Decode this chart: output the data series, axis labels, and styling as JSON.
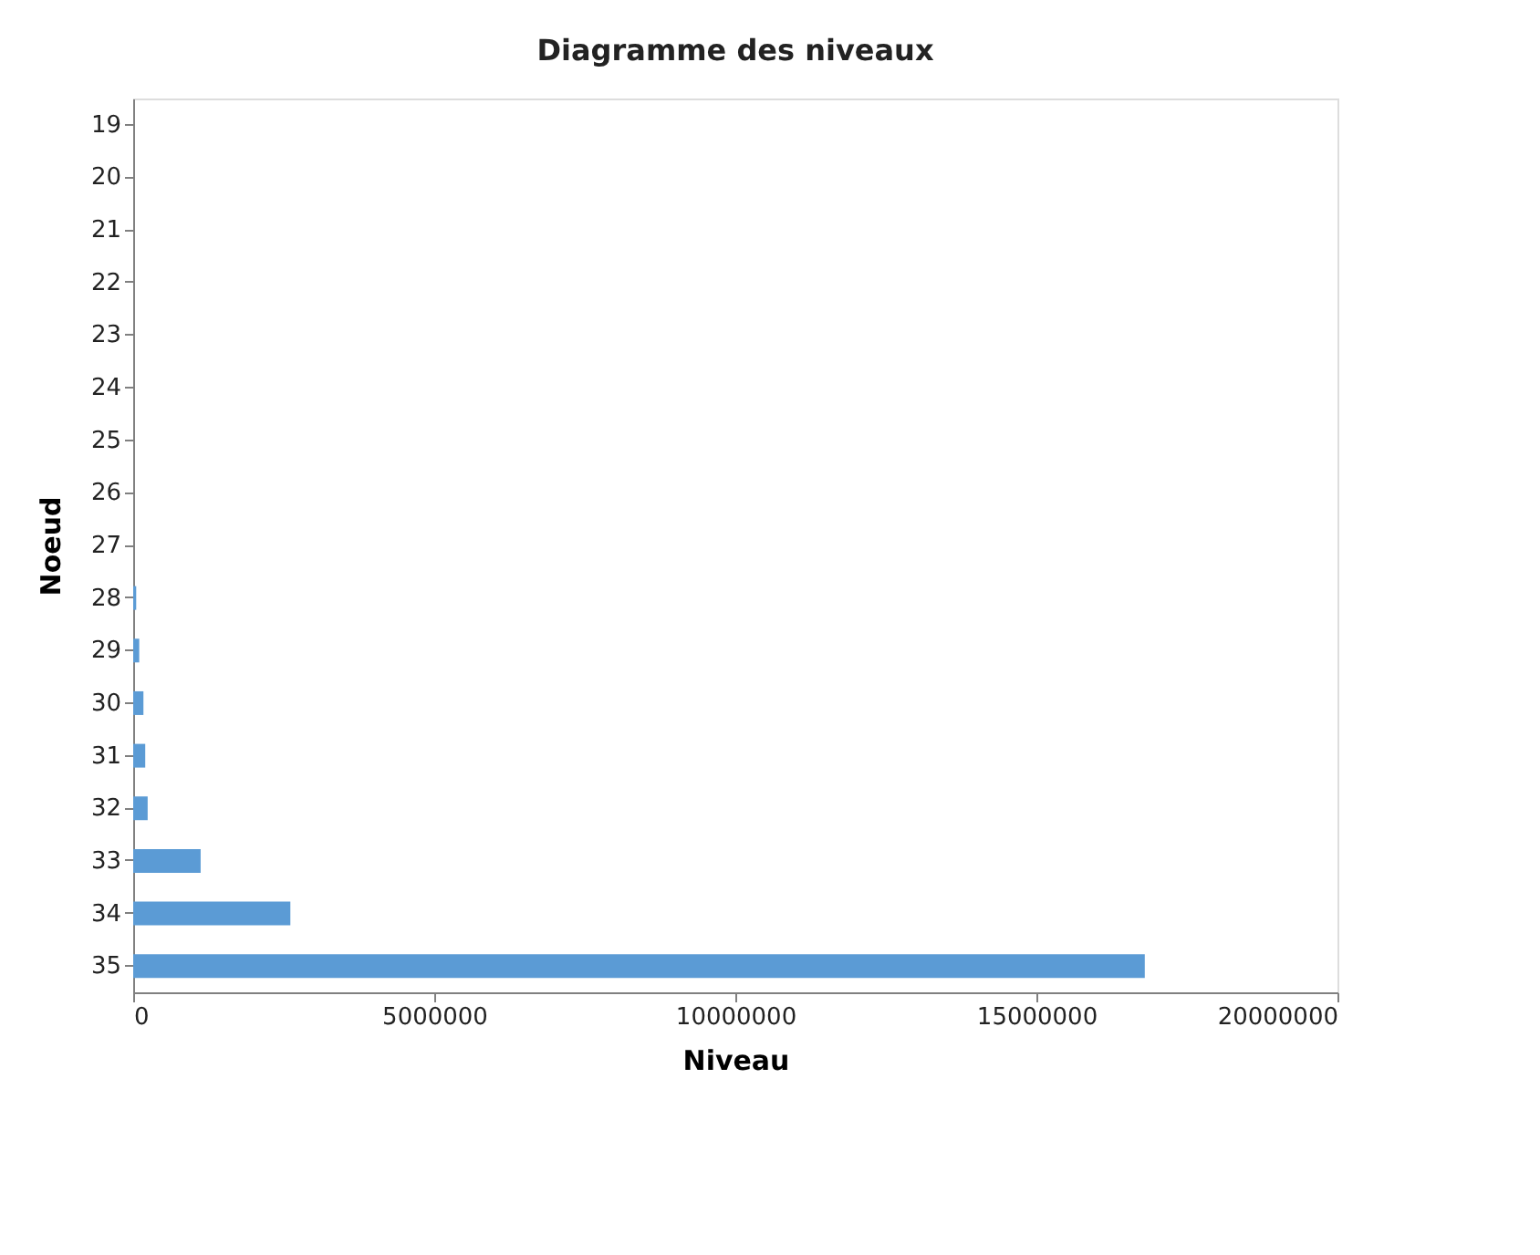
{
  "chart_data": {
    "type": "bar",
    "orientation": "horizontal",
    "title": "Diagramme des niveaux",
    "xlabel": "Niveau",
    "ylabel": "Noeud",
    "categories": [
      "19",
      "20",
      "21",
      "22",
      "23",
      "24",
      "25",
      "26",
      "27",
      "28",
      "29",
      "30",
      "31",
      "32",
      "33",
      "34",
      "35"
    ],
    "values": [
      0,
      0,
      0,
      0,
      0,
      0,
      0,
      0,
      0,
      50000,
      100000,
      170000,
      200000,
      240000,
      1120000,
      2610000,
      16800000
    ],
    "color": "#5b9bd5",
    "xlim": [
      0,
      20000000
    ],
    "xticks": [
      0,
      5000000,
      10000000,
      15000000,
      20000000
    ],
    "grid": false
  }
}
